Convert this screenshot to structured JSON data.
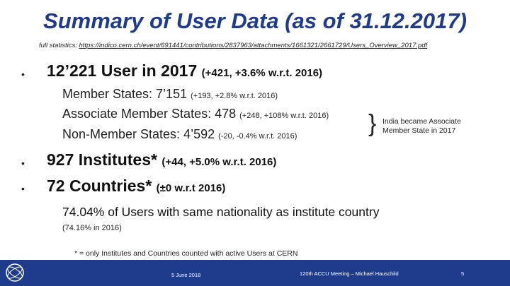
{
  "title": "Summary of User Data (as of 31.12.2017)",
  "stats_line": {
    "prefix": "full statistics:",
    "url": "https://indico.cern.ch/event/691441/contributions/2837963/attachments/1661321/2661729/Users_Overview_2017.pdf"
  },
  "bullets": [
    {
      "glyph": "•",
      "main": "12’221 User in 2017",
      "detail": "(+421, +3.6% w.r.t. 2016)"
    },
    {
      "glyph": "•",
      "main": "927 Institutes*",
      "detail": "(+44, +5.0% w.r.t. 2016)"
    },
    {
      "glyph": "•",
      "main": "72 Countries*",
      "detail": "(±0 w.r.t 2016)"
    }
  ],
  "member_lines": [
    {
      "label": "Member States: 7’151",
      "detail": "(+193, +2.8% w.r.t. 2016)"
    },
    {
      "label": "Associate Member States: 478",
      "detail": "(+248, +108% w.r.t. 2016)"
    },
    {
      "label": "Non-Member States: 4’592",
      "detail": "(-20, -0.4% w.r.t. 2016)"
    }
  ],
  "brace_note": "India became Associate Member State in 2017",
  "nationality": {
    "main": "74.04% of Users with same nationality as institute country",
    "sub": "(74.16% in 2016)"
  },
  "footnote": "* = only Institutes and Countries counted with active Users at CERN",
  "footer": {
    "date": "5 June 2018",
    "meeting": "120th ACCU Meeting – Michael Hauschild",
    "page": "5",
    "bar_color": "#1f3c8c"
  }
}
